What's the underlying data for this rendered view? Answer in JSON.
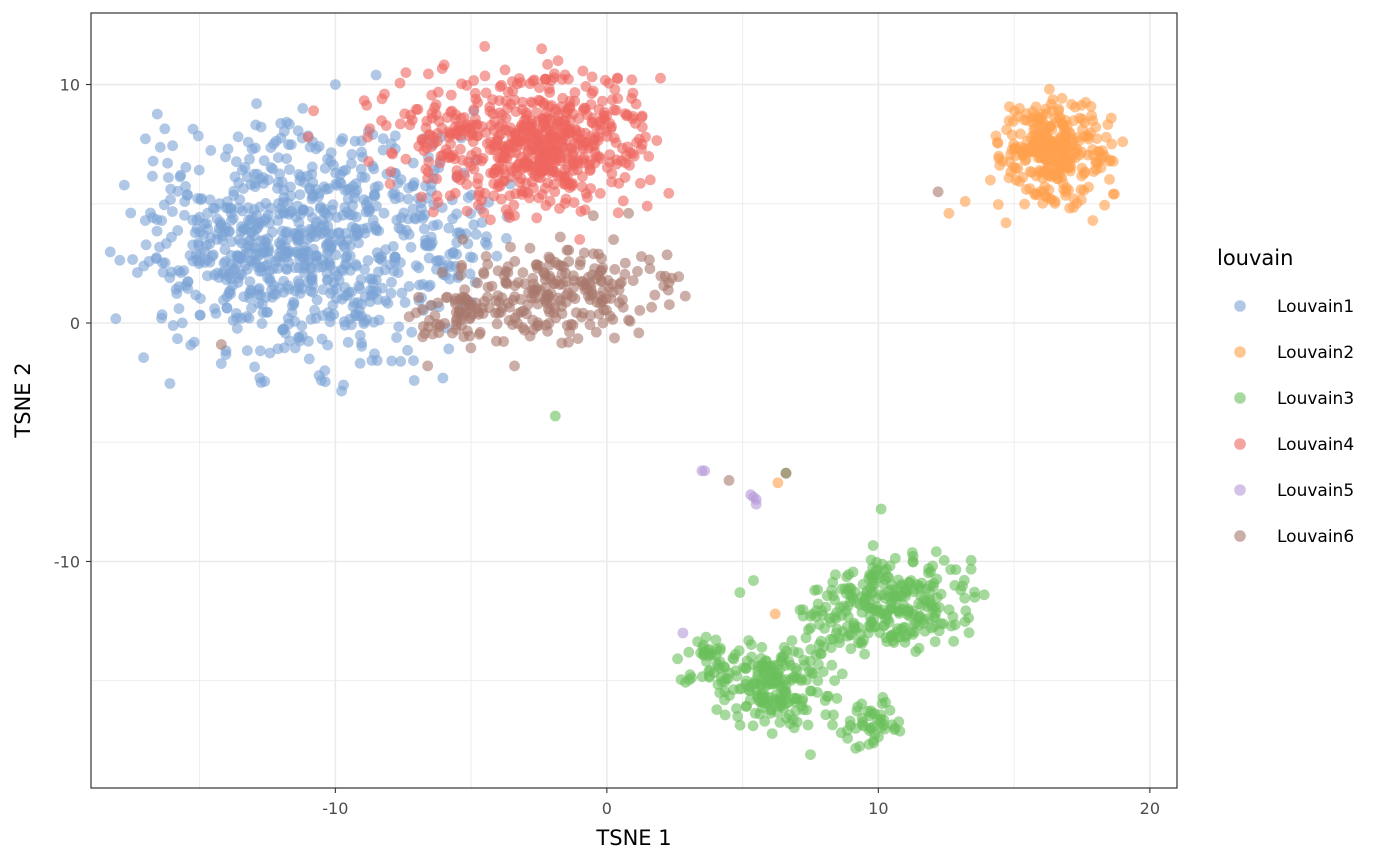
{
  "chart_data": {
    "type": "scatter",
    "title": "",
    "xlabel": "TSNE 1",
    "ylabel": "TSNE 2",
    "xlim": [
      -19.0,
      21.0
    ],
    "ylim": [
      -19.5,
      13.0
    ],
    "x_ticks": [
      -10,
      0,
      10,
      20
    ],
    "y_ticks": [
      -10,
      0,
      10
    ],
    "x_tick_labels": [
      "-10",
      "0",
      "10",
      "20"
    ],
    "y_tick_labels": [
      "-10",
      "0",
      "10"
    ],
    "grid": true,
    "point_alpha": 0.6,
    "legend": {
      "title": "louvain",
      "position": "right"
    },
    "series": [
      {
        "name": "Louvain1",
        "color": "#7ba3d6",
        "clusters": [
          {
            "cx": -11.5,
            "cy": 3.2,
            "sx": 2.8,
            "sy": 2.4,
            "n": 780
          },
          {
            "cx": -6.0,
            "cy": 4.0,
            "sx": 1.2,
            "sy": 1.6,
            "n": 80
          }
        ],
        "points": [
          [
            -17.0,
            4.3
          ],
          [
            -16.6,
            2.7
          ],
          [
            -15.2,
            -0.8
          ],
          [
            -14.2,
            -1.7
          ],
          [
            -10.6,
            -2.2
          ],
          [
            -9.7,
            -2.6
          ],
          [
            -8.5,
            10.4
          ],
          [
            -10.0,
            10.0
          ],
          [
            -12.9,
            9.2
          ],
          [
            -16.4,
            0.2
          ],
          [
            -11.2,
            9.0
          ]
        ]
      },
      {
        "name": "Louvain2",
        "color": "#ffa04d",
        "clusters": [
          {
            "cx": 16.5,
            "cy": 7.2,
            "sx": 1.0,
            "sy": 1.0,
            "n": 300
          }
        ],
        "points": [
          [
            16.3,
            9.8
          ],
          [
            15.2,
            9.0
          ],
          [
            12.6,
            4.6
          ],
          [
            13.2,
            5.1
          ],
          [
            19.0,
            7.6
          ],
          [
            17.9,
            4.3
          ],
          [
            14.7,
            4.2
          ],
          [
            6.3,
            -6.7
          ],
          [
            6.2,
            -12.2
          ]
        ]
      },
      {
        "name": "Louvain3",
        "color": "#6bbf5c",
        "clusters": [
          {
            "cx": 10.7,
            "cy": -11.7,
            "sx": 1.3,
            "sy": 1.0,
            "n": 250
          },
          {
            "cx": 6.3,
            "cy": -15.3,
            "sx": 1.0,
            "sy": 0.9,
            "n": 190
          },
          {
            "cx": 3.8,
            "cy": -14.2,
            "sx": 0.5,
            "sy": 0.6,
            "n": 50
          },
          {
            "cx": 9.8,
            "cy": -16.8,
            "sx": 0.5,
            "sy": 0.5,
            "n": 45
          },
          {
            "cx": 8.3,
            "cy": -12.5,
            "sx": 0.5,
            "sy": 0.7,
            "n": 35
          }
        ],
        "points": [
          [
            -1.9,
            -3.9
          ],
          [
            6.6,
            -6.3
          ],
          [
            10.1,
            -7.8
          ],
          [
            7.5,
            -18.1
          ],
          [
            4.9,
            -11.3
          ],
          [
            5.4,
            -10.8
          ],
          [
            13.9,
            -11.4
          ]
        ]
      },
      {
        "name": "Louvain4",
        "color": "#ef665f",
        "clusters": [
          {
            "cx": -2.3,
            "cy": 7.6,
            "sx": 1.9,
            "sy": 1.4,
            "n": 560
          },
          {
            "cx": -6.8,
            "cy": 7.7,
            "sx": 1.0,
            "sy": 1.3,
            "n": 60
          }
        ],
        "points": [
          [
            -4.5,
            11.6
          ],
          [
            -2.4,
            11.5
          ],
          [
            -7.4,
            10.5
          ],
          [
            -1.8,
            11.0
          ],
          [
            1.6,
            6.0
          ],
          [
            1.3,
            7.5
          ],
          [
            -1.0,
            3.5
          ],
          [
            -3.4,
            4.5
          ],
          [
            -10.8,
            8.9
          ],
          [
            -11.0,
            7.8
          ]
        ]
      },
      {
        "name": "Louvain5",
        "color": "#b69ad8",
        "clusters": [],
        "points": [
          [
            3.6,
            -6.2
          ],
          [
            3.5,
            -6.2
          ],
          [
            5.4,
            -7.3
          ],
          [
            5.5,
            -7.4
          ],
          [
            5.3,
            -7.2
          ],
          [
            5.5,
            -7.6
          ],
          [
            2.8,
            -13.0
          ]
        ]
      },
      {
        "name": "Louvain6",
        "color": "#a9786c",
        "clusters": [
          {
            "cx": -1.8,
            "cy": 1.3,
            "sx": 2.0,
            "sy": 1.0,
            "n": 240
          },
          {
            "cx": -5.0,
            "cy": 0.2,
            "sx": 1.0,
            "sy": 0.6,
            "n": 50
          }
        ],
        "points": [
          [
            -14.2,
            -0.9
          ],
          [
            -6.6,
            -1.8
          ],
          [
            -3.4,
            -1.8
          ],
          [
            12.2,
            5.5
          ],
          [
            4.5,
            -6.6
          ],
          [
            6.6,
            -6.3
          ],
          [
            -0.5,
            4.5
          ],
          [
            0.8,
            4.6
          ]
        ]
      }
    ]
  }
}
